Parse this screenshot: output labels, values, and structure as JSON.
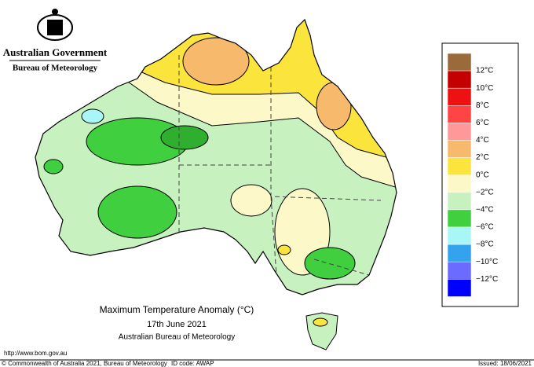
{
  "header": {
    "line1": "Australian Government",
    "line2": "Bureau of Meteorology"
  },
  "legend": {
    "colors": [
      "#9a6b3a",
      "#c40000",
      "#ee1111",
      "#ff4444",
      "#ff9999",
      "#f7b96b",
      "#fbe43c",
      "#fdf8c8",
      "#c8f1c0",
      "#3fcf3f",
      "#a8f6f6",
      "#33a3ee",
      "#6b6bff",
      "#0000ff"
    ],
    "labels": [
      "12°C",
      "10°C",
      "8°C",
      "6°C",
      "4°C",
      "2°C",
      "0°C",
      "−2°C",
      "−4°C",
      "−6°C",
      "−8°C",
      "−10°C",
      "−12°C"
    ]
  },
  "caption": {
    "title": "Maximum Temperature Anomaly (°C)",
    "date": "17th June 2021",
    "source": "Australian Bureau of Meteorology"
  },
  "footer": {
    "url": "http://www.bom.gov.au",
    "copyright": "© Commonwealth of Australia 2021, Bureau of Meteorology",
    "id_code": "ID code: AWAP",
    "issued": "Issued: 18/06/2021"
  }
}
